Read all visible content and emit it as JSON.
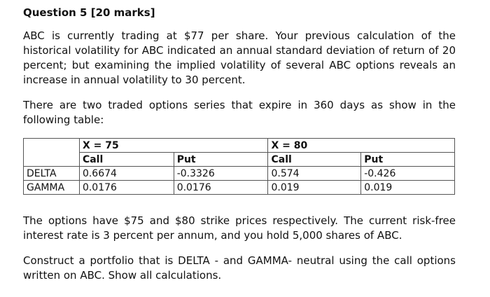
{
  "question": {
    "heading": "Question 5 [20 marks]",
    "paragraph1": "ABC is currently trading at $77 per share. Your previous calculation of the historical volatility for ABC indicated an annual standard deviation of return of 20 percent; but examining the implied volatility of several ABC options reveals an increase in annual volatility to 30 percent.",
    "paragraph2": "There are two traded options series that expire in 360 days as show in the following table:",
    "paragraph3": "The options have $75 and $80 strike prices respectively. The current risk-free interest rate is 3 percent per annum, and you hold 5,000 shares of ABC.",
    "paragraph4": "Construct a portfolio that is DELTA - and GAMMA- neutral using the call options written on ABC. Show all calculations."
  },
  "table": {
    "groups": [
      "X = 75",
      "X = 80"
    ],
    "subheaders": [
      "Call",
      "Put",
      "Call",
      "Put"
    ],
    "rows": [
      {
        "label": "DELTA",
        "values": [
          "0.6674",
          "-0.3326",
          "0.574",
          "-0.426"
        ]
      },
      {
        "label": "GAMMA",
        "values": [
          "0.0176",
          "0.0176",
          "0.019",
          "0.019"
        ]
      }
    ]
  }
}
